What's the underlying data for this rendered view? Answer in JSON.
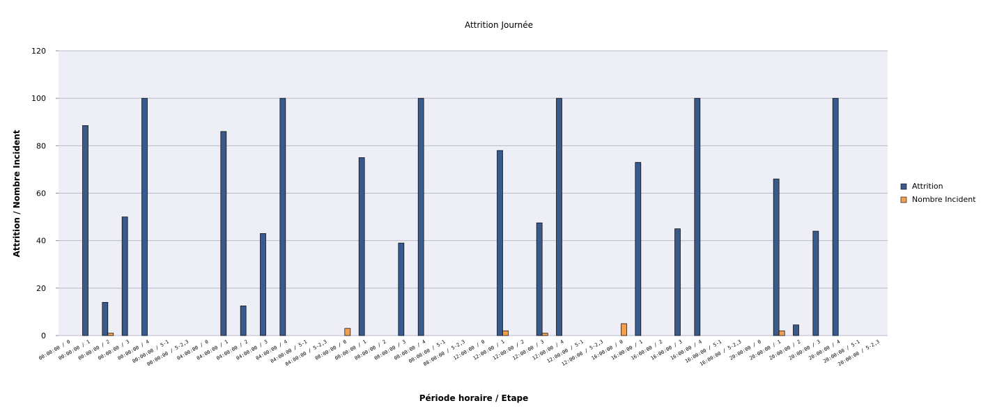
{
  "chart_data": {
    "type": "bar",
    "title": "Attrition Journée",
    "xlabel": "Période horaire / Etape",
    "ylabel": "Attrition / Nombre Incident",
    "ylim": [
      0,
      120
    ],
    "yticks": [
      0,
      20,
      40,
      60,
      80,
      100,
      120
    ],
    "grid": true,
    "legend_position": "right",
    "colors": {
      "plot_background": "#eeeef6",
      "grid": "#b8b8cc",
      "attrition": "#3a5a8c",
      "incident": "#f0a050"
    },
    "categories": [
      "00:00:00 / 0",
      "00:00:00 / 1",
      "00:00:00 / 2",
      "00:00:00 / 3",
      "00:00:00 / 4",
      "00:00:00 / 5-1",
      "00:00:00 / 5-2,3",
      "04:00:00 / 0",
      "04:00:00 / 1",
      "04:00:00 / 2",
      "04:00:00 / 3",
      "04:00:00 / 4",
      "04:00:00 / 5-1",
      "04:00:00 / 5-2,3",
      "08:00:00 / 0",
      "08:00:00 / 1",
      "08:00:00 / 2",
      "08:00:00 / 3",
      "08:00:00 / 4",
      "08:00:00 / 5-1",
      "08:00:00 / 5-2,3",
      "12:00:00 / 0",
      "12:00:00 / 1",
      "12:00:00 / 2",
      "12:00:00 / 3",
      "12:00:00 / 4",
      "12:00:00 / 5-1",
      "12:00:00 / 5-2,3",
      "16:00:00 / 0",
      "16:00:00 / 1",
      "16:00:00 / 2",
      "16:00:00 / 3",
      "16:00:00 / 4",
      "16:00:00 / 5-1",
      "16:00:00 / 5-2,3",
      "20:00:00 / 0",
      "20:00:00 / 1",
      "20:00:00 / 2",
      "20:00:00 / 3",
      "20:00:00 / 4",
      "20:00:00 / 5-1",
      "20:00:00 / 5-2,3"
    ],
    "series": [
      {
        "name": "Attrition",
        "values": [
          0,
          88.5,
          14,
          50,
          100,
          0,
          0,
          0,
          86,
          12.5,
          43,
          100,
          0,
          0,
          0,
          75,
          0,
          39,
          100,
          0,
          0,
          0,
          78,
          0,
          47.5,
          100,
          0,
          0,
          0,
          73,
          0,
          45,
          100,
          0,
          0,
          0,
          66,
          4.5,
          44,
          100,
          0,
          0
        ]
      },
      {
        "name": "Nombre Incident",
        "values": [
          0,
          0,
          1,
          0,
          0,
          0,
          0,
          0,
          0,
          0,
          0,
          0,
          0,
          0,
          3,
          0,
          0,
          0,
          0,
          0,
          0,
          0,
          2,
          0,
          1,
          0,
          0,
          0,
          5,
          0,
          0,
          0,
          0,
          0,
          0,
          0,
          2,
          0,
          0,
          0,
          0,
          0
        ]
      }
    ]
  }
}
